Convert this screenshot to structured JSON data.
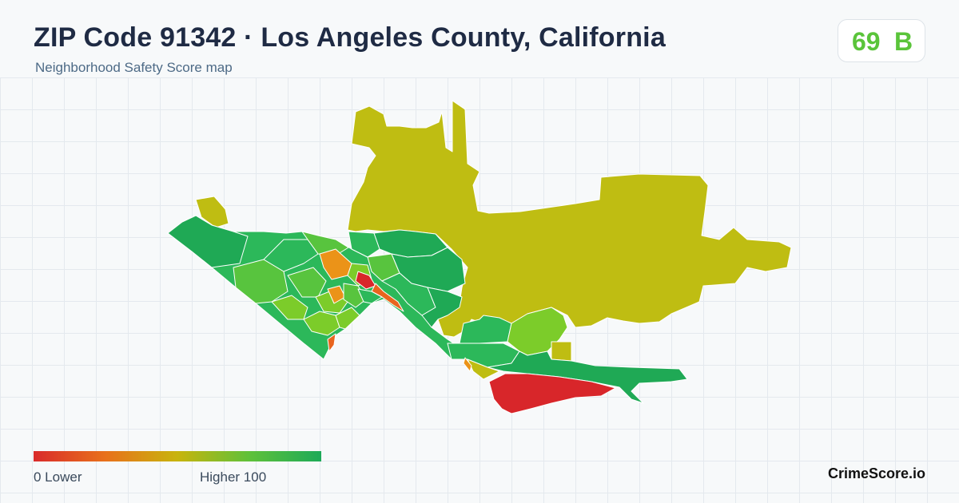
{
  "header": {
    "title": "ZIP Code 91342 · Los Angeles County, California",
    "subtitle": "Neighborhood Safety Score map"
  },
  "score": {
    "value": "69",
    "grade": "B",
    "color": "#5ac43a"
  },
  "legend": {
    "min_label": "0  Lower",
    "max_label": "Higher  100",
    "colors": [
      "#d92b2b",
      "#e8711b",
      "#c8b40d",
      "#5fc13a",
      "#1daa58"
    ]
  },
  "brand": "CrimeScore.io",
  "map_colors": {
    "olive": "#bfbd12",
    "green_dark": "#1fa955",
    "green": "#2cb85a",
    "green_light": "#58c43e",
    "lime": "#7ccc2a",
    "orange": "#eb9318",
    "orange_red": "#e8641e",
    "red": "#d8262a"
  }
}
